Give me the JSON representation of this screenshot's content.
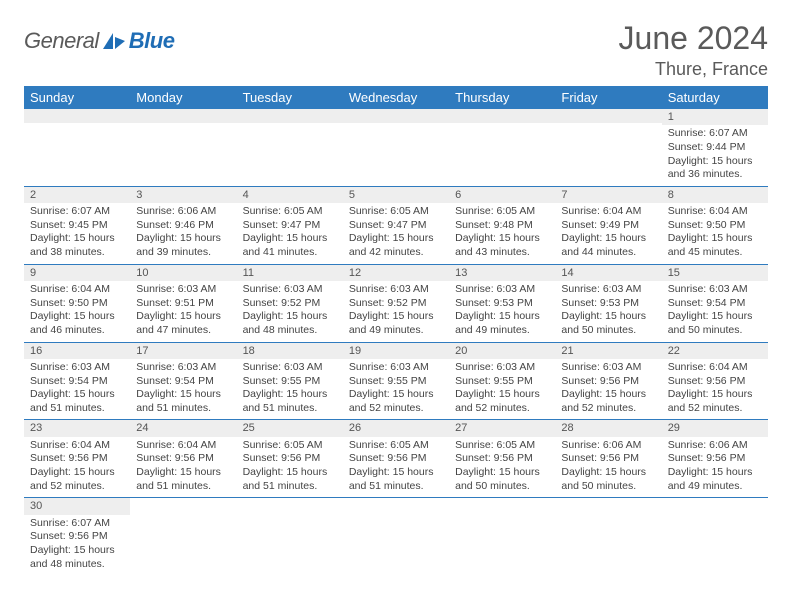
{
  "brand": {
    "part1": "General",
    "part2": "Blue"
  },
  "title": "June 2024",
  "location": "Thure, France",
  "colors": {
    "header_bg": "#2f7bbf",
    "header_fg": "#ffffff",
    "band_bg": "#eeeeee",
    "rule": "#2f7bbf",
    "text": "#444444",
    "title_color": "#5a5a5a"
  },
  "weekdays": [
    "Sunday",
    "Monday",
    "Tuesday",
    "Wednesday",
    "Thursday",
    "Friday",
    "Saturday"
  ],
  "weeks": [
    [
      null,
      null,
      null,
      null,
      null,
      null,
      {
        "n": "1",
        "sr": "Sunrise: 6:07 AM",
        "ss": "Sunset: 9:44 PM",
        "d1": "Daylight: 15 hours",
        "d2": "and 36 minutes."
      }
    ],
    [
      {
        "n": "2",
        "sr": "Sunrise: 6:07 AM",
        "ss": "Sunset: 9:45 PM",
        "d1": "Daylight: 15 hours",
        "d2": "and 38 minutes."
      },
      {
        "n": "3",
        "sr": "Sunrise: 6:06 AM",
        "ss": "Sunset: 9:46 PM",
        "d1": "Daylight: 15 hours",
        "d2": "and 39 minutes."
      },
      {
        "n": "4",
        "sr": "Sunrise: 6:05 AM",
        "ss": "Sunset: 9:47 PM",
        "d1": "Daylight: 15 hours",
        "d2": "and 41 minutes."
      },
      {
        "n": "5",
        "sr": "Sunrise: 6:05 AM",
        "ss": "Sunset: 9:47 PM",
        "d1": "Daylight: 15 hours",
        "d2": "and 42 minutes."
      },
      {
        "n": "6",
        "sr": "Sunrise: 6:05 AM",
        "ss": "Sunset: 9:48 PM",
        "d1": "Daylight: 15 hours",
        "d2": "and 43 minutes."
      },
      {
        "n": "7",
        "sr": "Sunrise: 6:04 AM",
        "ss": "Sunset: 9:49 PM",
        "d1": "Daylight: 15 hours",
        "d2": "and 44 minutes."
      },
      {
        "n": "8",
        "sr": "Sunrise: 6:04 AM",
        "ss": "Sunset: 9:50 PM",
        "d1": "Daylight: 15 hours",
        "d2": "and 45 minutes."
      }
    ],
    [
      {
        "n": "9",
        "sr": "Sunrise: 6:04 AM",
        "ss": "Sunset: 9:50 PM",
        "d1": "Daylight: 15 hours",
        "d2": "and 46 minutes."
      },
      {
        "n": "10",
        "sr": "Sunrise: 6:03 AM",
        "ss": "Sunset: 9:51 PM",
        "d1": "Daylight: 15 hours",
        "d2": "and 47 minutes."
      },
      {
        "n": "11",
        "sr": "Sunrise: 6:03 AM",
        "ss": "Sunset: 9:52 PM",
        "d1": "Daylight: 15 hours",
        "d2": "and 48 minutes."
      },
      {
        "n": "12",
        "sr": "Sunrise: 6:03 AM",
        "ss": "Sunset: 9:52 PM",
        "d1": "Daylight: 15 hours",
        "d2": "and 49 minutes."
      },
      {
        "n": "13",
        "sr": "Sunrise: 6:03 AM",
        "ss": "Sunset: 9:53 PM",
        "d1": "Daylight: 15 hours",
        "d2": "and 49 minutes."
      },
      {
        "n": "14",
        "sr": "Sunrise: 6:03 AM",
        "ss": "Sunset: 9:53 PM",
        "d1": "Daylight: 15 hours",
        "d2": "and 50 minutes."
      },
      {
        "n": "15",
        "sr": "Sunrise: 6:03 AM",
        "ss": "Sunset: 9:54 PM",
        "d1": "Daylight: 15 hours",
        "d2": "and 50 minutes."
      }
    ],
    [
      {
        "n": "16",
        "sr": "Sunrise: 6:03 AM",
        "ss": "Sunset: 9:54 PM",
        "d1": "Daylight: 15 hours",
        "d2": "and 51 minutes."
      },
      {
        "n": "17",
        "sr": "Sunrise: 6:03 AM",
        "ss": "Sunset: 9:54 PM",
        "d1": "Daylight: 15 hours",
        "d2": "and 51 minutes."
      },
      {
        "n": "18",
        "sr": "Sunrise: 6:03 AM",
        "ss": "Sunset: 9:55 PM",
        "d1": "Daylight: 15 hours",
        "d2": "and 51 minutes."
      },
      {
        "n": "19",
        "sr": "Sunrise: 6:03 AM",
        "ss": "Sunset: 9:55 PM",
        "d1": "Daylight: 15 hours",
        "d2": "and 52 minutes."
      },
      {
        "n": "20",
        "sr": "Sunrise: 6:03 AM",
        "ss": "Sunset: 9:55 PM",
        "d1": "Daylight: 15 hours",
        "d2": "and 52 minutes."
      },
      {
        "n": "21",
        "sr": "Sunrise: 6:03 AM",
        "ss": "Sunset: 9:56 PM",
        "d1": "Daylight: 15 hours",
        "d2": "and 52 minutes."
      },
      {
        "n": "22",
        "sr": "Sunrise: 6:04 AM",
        "ss": "Sunset: 9:56 PM",
        "d1": "Daylight: 15 hours",
        "d2": "and 52 minutes."
      }
    ],
    [
      {
        "n": "23",
        "sr": "Sunrise: 6:04 AM",
        "ss": "Sunset: 9:56 PM",
        "d1": "Daylight: 15 hours",
        "d2": "and 52 minutes."
      },
      {
        "n": "24",
        "sr": "Sunrise: 6:04 AM",
        "ss": "Sunset: 9:56 PM",
        "d1": "Daylight: 15 hours",
        "d2": "and 51 minutes."
      },
      {
        "n": "25",
        "sr": "Sunrise: 6:05 AM",
        "ss": "Sunset: 9:56 PM",
        "d1": "Daylight: 15 hours",
        "d2": "and 51 minutes."
      },
      {
        "n": "26",
        "sr": "Sunrise: 6:05 AM",
        "ss": "Sunset: 9:56 PM",
        "d1": "Daylight: 15 hours",
        "d2": "and 51 minutes."
      },
      {
        "n": "27",
        "sr": "Sunrise: 6:05 AM",
        "ss": "Sunset: 9:56 PM",
        "d1": "Daylight: 15 hours",
        "d2": "and 50 minutes."
      },
      {
        "n": "28",
        "sr": "Sunrise: 6:06 AM",
        "ss": "Sunset: 9:56 PM",
        "d1": "Daylight: 15 hours",
        "d2": "and 50 minutes."
      },
      {
        "n": "29",
        "sr": "Sunrise: 6:06 AM",
        "ss": "Sunset: 9:56 PM",
        "d1": "Daylight: 15 hours",
        "d2": "and 49 minutes."
      }
    ],
    [
      {
        "n": "30",
        "sr": "Sunrise: 6:07 AM",
        "ss": "Sunset: 9:56 PM",
        "d1": "Daylight: 15 hours",
        "d2": "and 48 minutes."
      },
      null,
      null,
      null,
      null,
      null,
      null
    ]
  ]
}
